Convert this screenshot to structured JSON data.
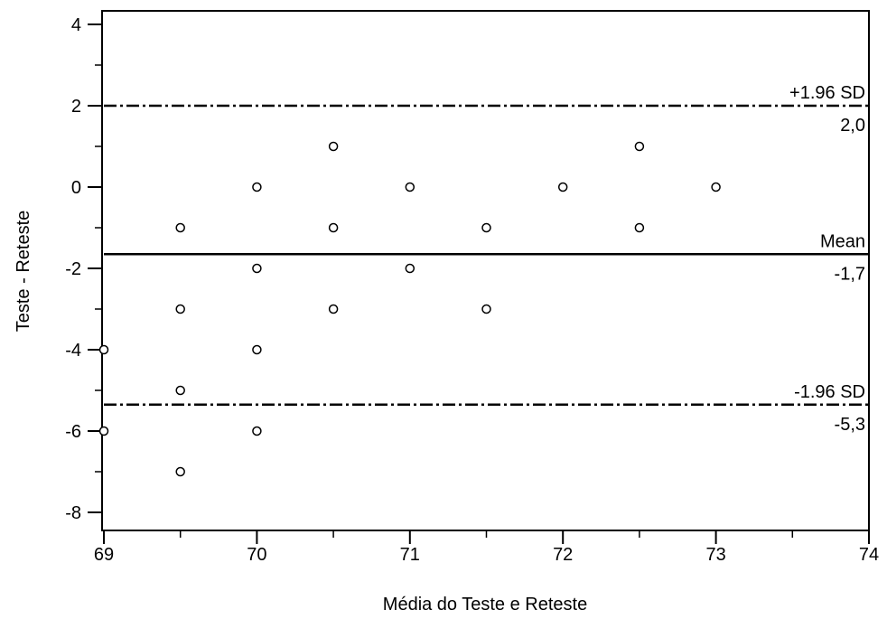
{
  "chart_data": {
    "type": "scatter",
    "xlabel": "Média do Teste e Reteste",
    "ylabel": "Teste - Reteste",
    "xlim": [
      69,
      74
    ],
    "ylim": [
      -8,
      4
    ],
    "x_ticks": [
      "69",
      "70",
      "71",
      "72",
      "73",
      "74"
    ],
    "y_ticks": [
      "4",
      "2",
      "0",
      "-2",
      "-4",
      "-6",
      "-8"
    ],
    "points": [
      {
        "x": 69.0,
        "y": -4
      },
      {
        "x": 69.0,
        "y": -6
      },
      {
        "x": 69.5,
        "y": -1
      },
      {
        "x": 69.5,
        "y": -3
      },
      {
        "x": 69.5,
        "y": -5
      },
      {
        "x": 69.5,
        "y": -7
      },
      {
        "x": 70.0,
        "y": 0
      },
      {
        "x": 70.0,
        "y": -2
      },
      {
        "x": 70.0,
        "y": -4
      },
      {
        "x": 70.0,
        "y": -6
      },
      {
        "x": 70.5,
        "y": 1
      },
      {
        "x": 70.5,
        "y": -1
      },
      {
        "x": 70.5,
        "y": -3
      },
      {
        "x": 71.0,
        "y": 0
      },
      {
        "x": 71.0,
        "y": -2
      },
      {
        "x": 71.5,
        "y": -1
      },
      {
        "x": 71.5,
        "y": -3
      },
      {
        "x": 72.0,
        "y": 0
      },
      {
        "x": 72.5,
        "y": 1
      },
      {
        "x": 72.5,
        "y": -1
      },
      {
        "x": 73.0,
        "y": 0
      }
    ],
    "reference_lines": [
      {
        "label": "+1.96 SD",
        "value_label": "2,0",
        "y": 2.0,
        "style": "dashed"
      },
      {
        "label": "Mean",
        "value_label": "-1,7",
        "y": -1.65,
        "style": "solid"
      },
      {
        "label": "-1.96 SD",
        "value_label": "-5,3",
        "y": -5.35,
        "style": "dashed"
      }
    ],
    "grid": false
  }
}
